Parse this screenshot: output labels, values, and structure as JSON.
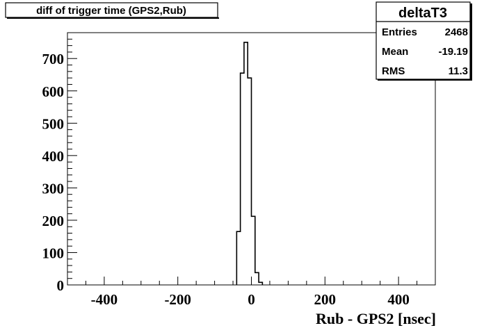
{
  "title_box": {
    "text": "diff of trigger time (GPS2,Rub)"
  },
  "stats_box": {
    "name": "deltaT3",
    "rows": [
      {
        "label": "Entries",
        "value": "2468"
      },
      {
        "label": "Mean",
        "value": "-19.19"
      },
      {
        "label": "RMS",
        "value": "11.3"
      }
    ]
  },
  "chart_data": {
    "type": "bar",
    "title": "diff of trigger time (GPS2,Rub)",
    "xlabel": "Rub - GPS2 [nsec]",
    "ylabel": "",
    "xlim": [
      -500,
      500
    ],
    "ylim": [
      0,
      780
    ],
    "x_ticks": [
      -400,
      -200,
      0,
      200,
      400
    ],
    "x_tick_labels": [
      "-400",
      "-200",
      "0",
      "200",
      "400"
    ],
    "y_ticks": [
      0,
      100,
      200,
      300,
      400,
      500,
      600,
      700
    ],
    "y_tick_labels": [
      "0",
      "100",
      "200",
      "300",
      "400",
      "500",
      "600",
      "700"
    ],
    "bin_width": 10,
    "bins": [
      {
        "x0": -40,
        "x1": -30,
        "value": 165
      },
      {
        "x0": -30,
        "x1": -20,
        "value": 655
      },
      {
        "x0": -20,
        "x1": -10,
        "value": 750
      },
      {
        "x0": -10,
        "x1": 0,
        "value": 640
      },
      {
        "x0": 0,
        "x1": 10,
        "value": 212
      },
      {
        "x0": 10,
        "x1": 20,
        "value": 38
      },
      {
        "x0": 20,
        "x1": 30,
        "value": 8
      }
    ],
    "grid": false,
    "legend": "none"
  }
}
